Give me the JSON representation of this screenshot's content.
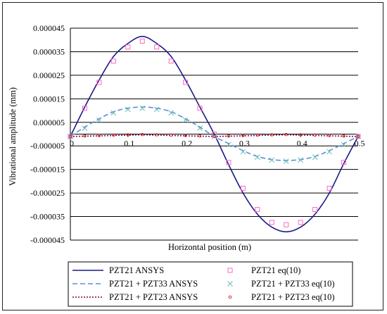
{
  "chart_data": {
    "type": "line",
    "title": "",
    "xlabel": "Horizontal position (m)",
    "ylabel": "Vibrational amplitude (mm)",
    "xlim": [
      0,
      0.5
    ],
    "ylim": [
      -4.5e-05,
      4.5e-05
    ],
    "xticks": [
      0,
      0.1,
      0.2,
      0.3,
      0.4,
      0.5
    ],
    "xtick_labels": [
      "0",
      "0.1",
      "0.2",
      "0.3",
      "0.4",
      "0.5"
    ],
    "yticks": [
      4.5e-05,
      3.5e-05,
      2.5e-05,
      1.5e-05,
      5e-06,
      -5e-06,
      -1.5e-05,
      -2.5e-05,
      -3.5e-05,
      -4.5e-05
    ],
    "ytick_labels": [
      "0.000045",
      "0.000035",
      "0.000025",
      "0.000015",
      "0.000005",
      "-0.000005",
      "-0.000015",
      "-0.000025",
      "-0.000035",
      "-0.000045"
    ],
    "grid": "horizontal",
    "legend_position": "bottom",
    "series": [
      {
        "name": "PZT21 ANSYS",
        "style": "solid-line",
        "color": "#1a1a80",
        "x": [
          0,
          0.025,
          0.05,
          0.075,
          0.1,
          0.125,
          0.15,
          0.175,
          0.2,
          0.225,
          0.25,
          0.275,
          0.3,
          0.325,
          0.35,
          0.375,
          0.4,
          0.425,
          0.45,
          0.475,
          0.5
        ],
        "values": [
          -1e-06,
          1.15e-05,
          2.3e-05,
          3.3e-05,
          3.85e-05,
          4.15e-05,
          3.85e-05,
          3.3e-05,
          2.3e-05,
          1.15e-05,
          0,
          -1.3e-05,
          -2.5e-05,
          -3.4e-05,
          -3.95e-05,
          -4.15e-05,
          -3.95e-05,
          -3.4e-05,
          -2.5e-05,
          -1.25e-05,
          -1e-06
        ]
      },
      {
        "name": "PZT21 eq(10)",
        "style": "square-markers",
        "color": "#ff66cc",
        "x": [
          0,
          0.025,
          0.05,
          0.075,
          0.1,
          0.125,
          0.15,
          0.175,
          0.2,
          0.225,
          0.25,
          0.275,
          0.3,
          0.325,
          0.35,
          0.375,
          0.4,
          0.425,
          0.45,
          0.475,
          0.5
        ],
        "values": [
          -1e-06,
          1.1e-05,
          2.2e-05,
          3.1e-05,
          3.7e-05,
          3.95e-05,
          3.7e-05,
          3.1e-05,
          2.2e-05,
          1.1e-05,
          0,
          -1.2e-05,
          -2.3e-05,
          -3.2e-05,
          -3.75e-05,
          -3.85e-05,
          -3.75e-05,
          -3.2e-05,
          -2.3e-05,
          -1.2e-05,
          -1e-06
        ]
      },
      {
        "name": "PZT21 + PZT33 ANSYS",
        "style": "dashed-line",
        "color": "#5b8fd6",
        "x": [
          0,
          0.025,
          0.05,
          0.075,
          0.1,
          0.125,
          0.15,
          0.175,
          0.2,
          0.225,
          0.25,
          0.275,
          0.3,
          0.325,
          0.35,
          0.375,
          0.4,
          0.425,
          0.45,
          0.475,
          0.5
        ],
        "values": [
          -1e-06,
          3e-06,
          6.5e-06,
          9.5e-06,
          1.1e-05,
          1.15e-05,
          1.1e-05,
          9.5e-06,
          6.5e-06,
          3e-06,
          -1e-06,
          -4e-06,
          -7e-06,
          -9.5e-06,
          -1.08e-05,
          -1.12e-05,
          -1.08e-05,
          -9.5e-06,
          -7e-06,
          -4e-06,
          -1e-06
        ]
      },
      {
        "name": "PZT21 + PZT33 eq(10)",
        "style": "x-markers",
        "color": "#66bbbb",
        "x": [
          0,
          0.025,
          0.05,
          0.075,
          0.1,
          0.125,
          0.15,
          0.175,
          0.2,
          0.225,
          0.25,
          0.275,
          0.3,
          0.325,
          0.35,
          0.375,
          0.4,
          0.425,
          0.45,
          0.475,
          0.5
        ],
        "values": [
          -1e-06,
          2.5e-06,
          6e-06,
          9e-06,
          1.05e-05,
          1.1e-05,
          1.05e-05,
          9e-06,
          6e-06,
          2.5e-06,
          -1e-06,
          -4.5e-06,
          -7.5e-06,
          -9.8e-06,
          -1.1e-05,
          -1.15e-05,
          -1.1e-05,
          -9.8e-06,
          -7.5e-06,
          -4.5e-06,
          -1e-06
        ]
      },
      {
        "name": "PZT21 + PZT23 ANSYS",
        "style": "dotted-line",
        "color": "#800040",
        "x": [
          0,
          0.125,
          0.25,
          0.375,
          0.5
        ],
        "values": [
          -1e-06,
          -3e-07,
          -1e-06,
          -3e-07,
          -1e-06
        ]
      },
      {
        "name": "PZT21 + PZT23 eq(10)",
        "style": "circle-markers",
        "color": "#cc3333",
        "x": [
          0,
          0.025,
          0.05,
          0.075,
          0.1,
          0.125,
          0.15,
          0.175,
          0.2,
          0.225,
          0.25,
          0.275,
          0.3,
          0.325,
          0.35,
          0.375,
          0.4,
          0.425,
          0.45,
          0.475,
          0.5
        ],
        "values": [
          -1e-06,
          -8e-07,
          -6e-07,
          -4e-07,
          -3e-07,
          -2e-07,
          -3e-07,
          -4e-07,
          -6e-07,
          -8e-07,
          -1e-06,
          -8e-07,
          -6e-07,
          -4e-07,
          -3e-07,
          -2e-07,
          -3e-07,
          -4e-07,
          -6e-07,
          -8e-07,
          -1e-06
        ]
      }
    ],
    "legend_order": [
      [
        "PZT21 ANSYS",
        "PZT21 eq(10)"
      ],
      [
        "PZT21 + PZT33 ANSYS",
        "PZT21 + PZT33 eq(10)"
      ],
      [
        "PZT21 + PZT23 ANSYS",
        "PZT21 + PZT23 eq(10)"
      ]
    ]
  }
}
